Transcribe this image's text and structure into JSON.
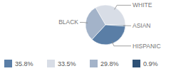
{
  "chart_data": {
    "type": "pie",
    "categories": [
      "WHITE",
      "ASIAN",
      "HISPANIC",
      "BLACK"
    ],
    "values": [
      33.5,
      0.9,
      35.8,
      29.8
    ],
    "value_labels": [
      "33.5%",
      "0.9%",
      "35.8%",
      "29.8%"
    ],
    "colors": [
      "#d8dde6",
      "#2f5276",
      "#5a7ea6",
      "#a3b3c9"
    ],
    "legend": "bottom"
  }
}
